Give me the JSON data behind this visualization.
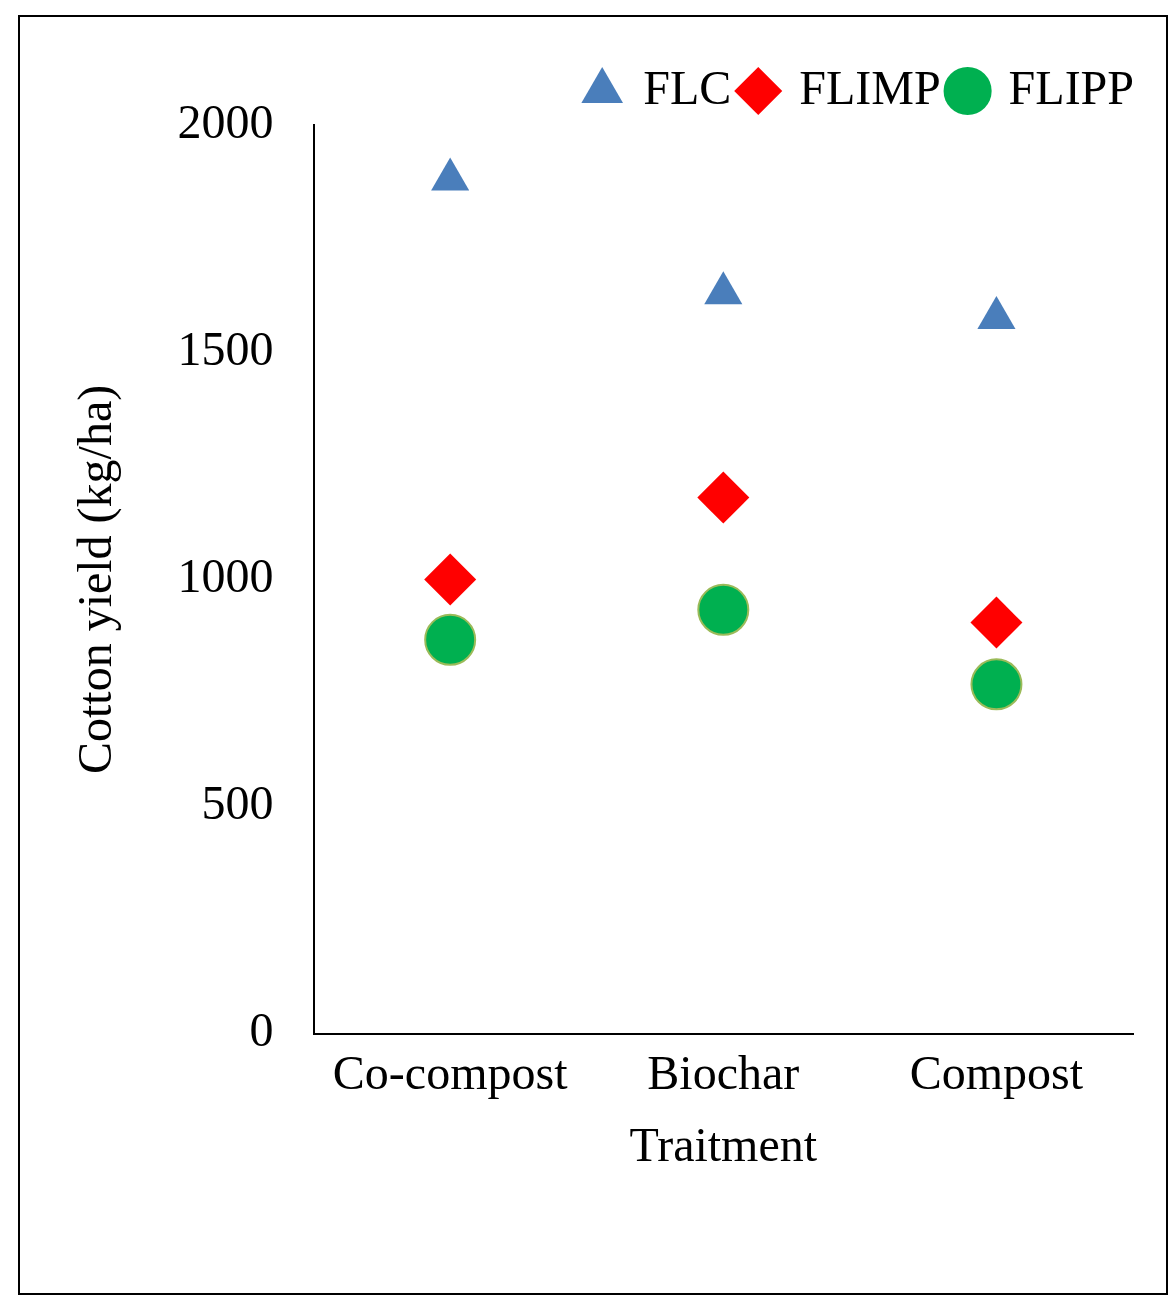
{
  "chart_data": {
    "type": "scatter",
    "xlabel": "Traitment",
    "ylabel": "Cotton yield (kg/ha)",
    "categories": [
      "Co-compost",
      "Biochar",
      "Compost"
    ],
    "series": [
      {
        "name": "FLC",
        "color": "#4a7ebb",
        "marker": "triangle",
        "values": [
          1880,
          1630,
          1575
        ]
      },
      {
        "name": "FLIMP",
        "color": "#ff0000",
        "marker": "diamond",
        "values": [
          1000,
          1180,
          905
        ]
      },
      {
        "name": "FLIPP",
        "color": "#00b050",
        "marker": "circle",
        "values": [
          867,
          933,
          769
        ]
      }
    ],
    "ylim": [
      0,
      2000
    ],
    "yticks": [
      0,
      500,
      1000,
      1500,
      2000
    ],
    "grid": false,
    "legend": "top right"
  }
}
